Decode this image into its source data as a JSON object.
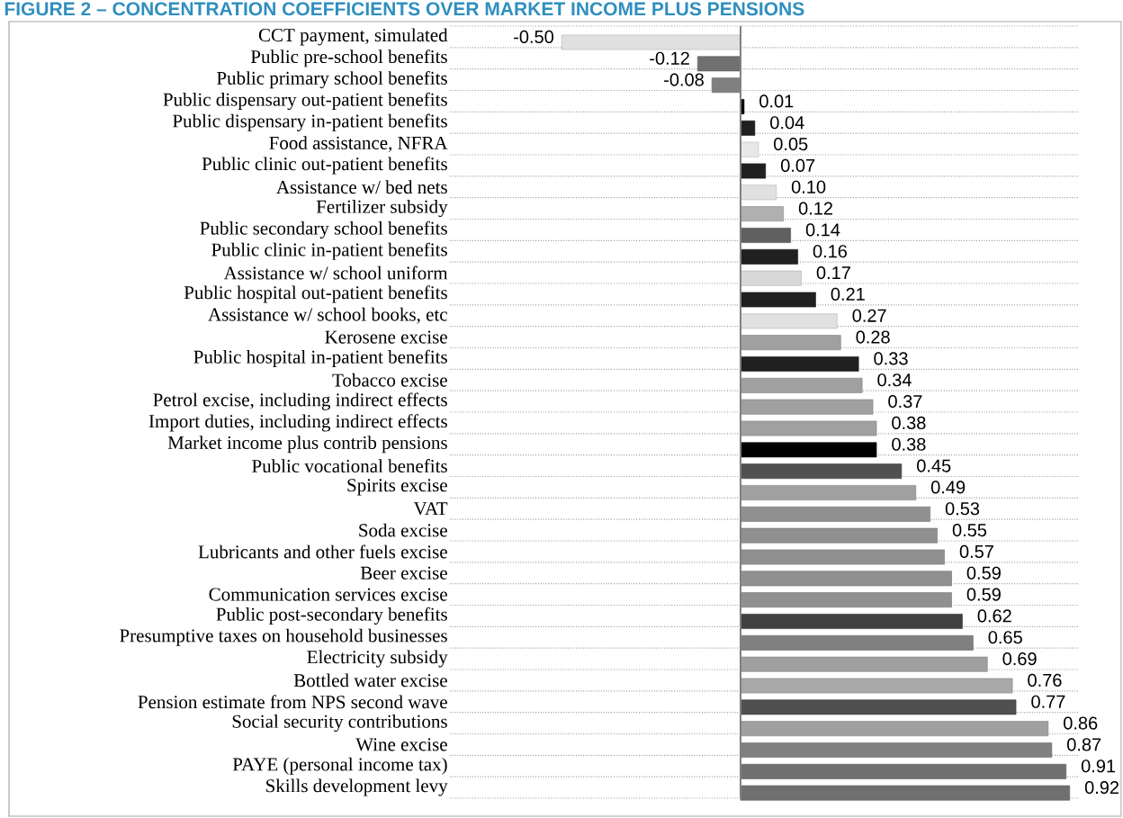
{
  "chart_data": {
    "type": "bar",
    "orientation": "horizontal",
    "title": "FIGURE 2 – CONCENTRATION COEFFICIENTS OVER MARKET INCOME PLUS PENSIONS",
    "categories": [
      "CCT payment, simulated",
      "Public pre-school benefits",
      "Public primary school benefits",
      "Public dispensary out-patient benefits",
      "Public dispensary in-patient benefits",
      "Food assistance, NFRA",
      "Public clinic out-patient benefits",
      "Assistance w/ bed nets",
      "Fertilizer subsidy",
      "Public secondary school benefits",
      "Public clinic in-patient benefits",
      "Assistance w/ school uniform",
      "Public hospital out-patient benefits",
      "Assistance w/ school books, etc",
      "Kerosene excise",
      "Public hospital in-patient benefits",
      "Tobacco excise",
      "Petrol excise, including indirect effects",
      "Import duties, including indirect effects",
      "Market income plus contrib pensions",
      "Public vocational benefits",
      "Spirits excise",
      "VAT",
      "Soda excise",
      "Lubricants and other fuels excise",
      "Beer excise",
      "Communication services excise",
      "Public post-secondary benefits",
      "Presumptive taxes on household businesses",
      "Electricity subsidy",
      "Bottled water excise",
      "Pension estimate from NPS second wave",
      "Social security contributions",
      "Wine excise",
      "PAYE (personal income tax)",
      "Skills development levy"
    ],
    "values": [
      -0.5,
      -0.12,
      -0.08,
      0.01,
      0.04,
      0.05,
      0.07,
      0.1,
      0.12,
      0.14,
      0.16,
      0.17,
      0.21,
      0.27,
      0.28,
      0.33,
      0.34,
      0.37,
      0.38,
      0.38,
      0.45,
      0.49,
      0.53,
      0.55,
      0.57,
      0.59,
      0.59,
      0.62,
      0.65,
      0.69,
      0.76,
      0.77,
      0.86,
      0.87,
      0.91,
      0.92
    ],
    "value_labels": [
      "-0.50",
      "-0.12",
      "-0.08",
      "0.01",
      "0.04",
      "0.05",
      "0.07",
      "0.10",
      "0.12",
      "0.14",
      "0.16",
      "0.17",
      "0.21",
      "0.27",
      "0.28",
      "0.33",
      "0.34",
      "0.37",
      "0.38",
      "0.38",
      "0.45",
      "0.49",
      "0.53",
      "0.55",
      "0.57",
      "0.59",
      "0.59",
      "0.62",
      "0.65",
      "0.69",
      "0.76",
      "0.77",
      "0.86",
      "0.87",
      "0.91",
      "0.92"
    ],
    "colors": [
      "#e0e0e0",
      "#707070",
      "#808080",
      "#000000",
      "#202020",
      "#e8e8e8",
      "#202020",
      "#e0e0e0",
      "#b0b0b0",
      "#606060",
      "#202020",
      "#d8d8d8",
      "#202020",
      "#e0e0e0",
      "#a0a0a0",
      "#202020",
      "#a0a0a0",
      "#a0a0a0",
      "#a0a0a0",
      "#000000",
      "#505050",
      "#a0a0a0",
      "#909090",
      "#909090",
      "#909090",
      "#909090",
      "#909090",
      "#404040",
      "#808080",
      "#a0a0a0",
      "#a8a8a8",
      "#505050",
      "#a0a0a0",
      "#808080",
      "#707070",
      "#707070"
    ],
    "grid": "y"
  }
}
